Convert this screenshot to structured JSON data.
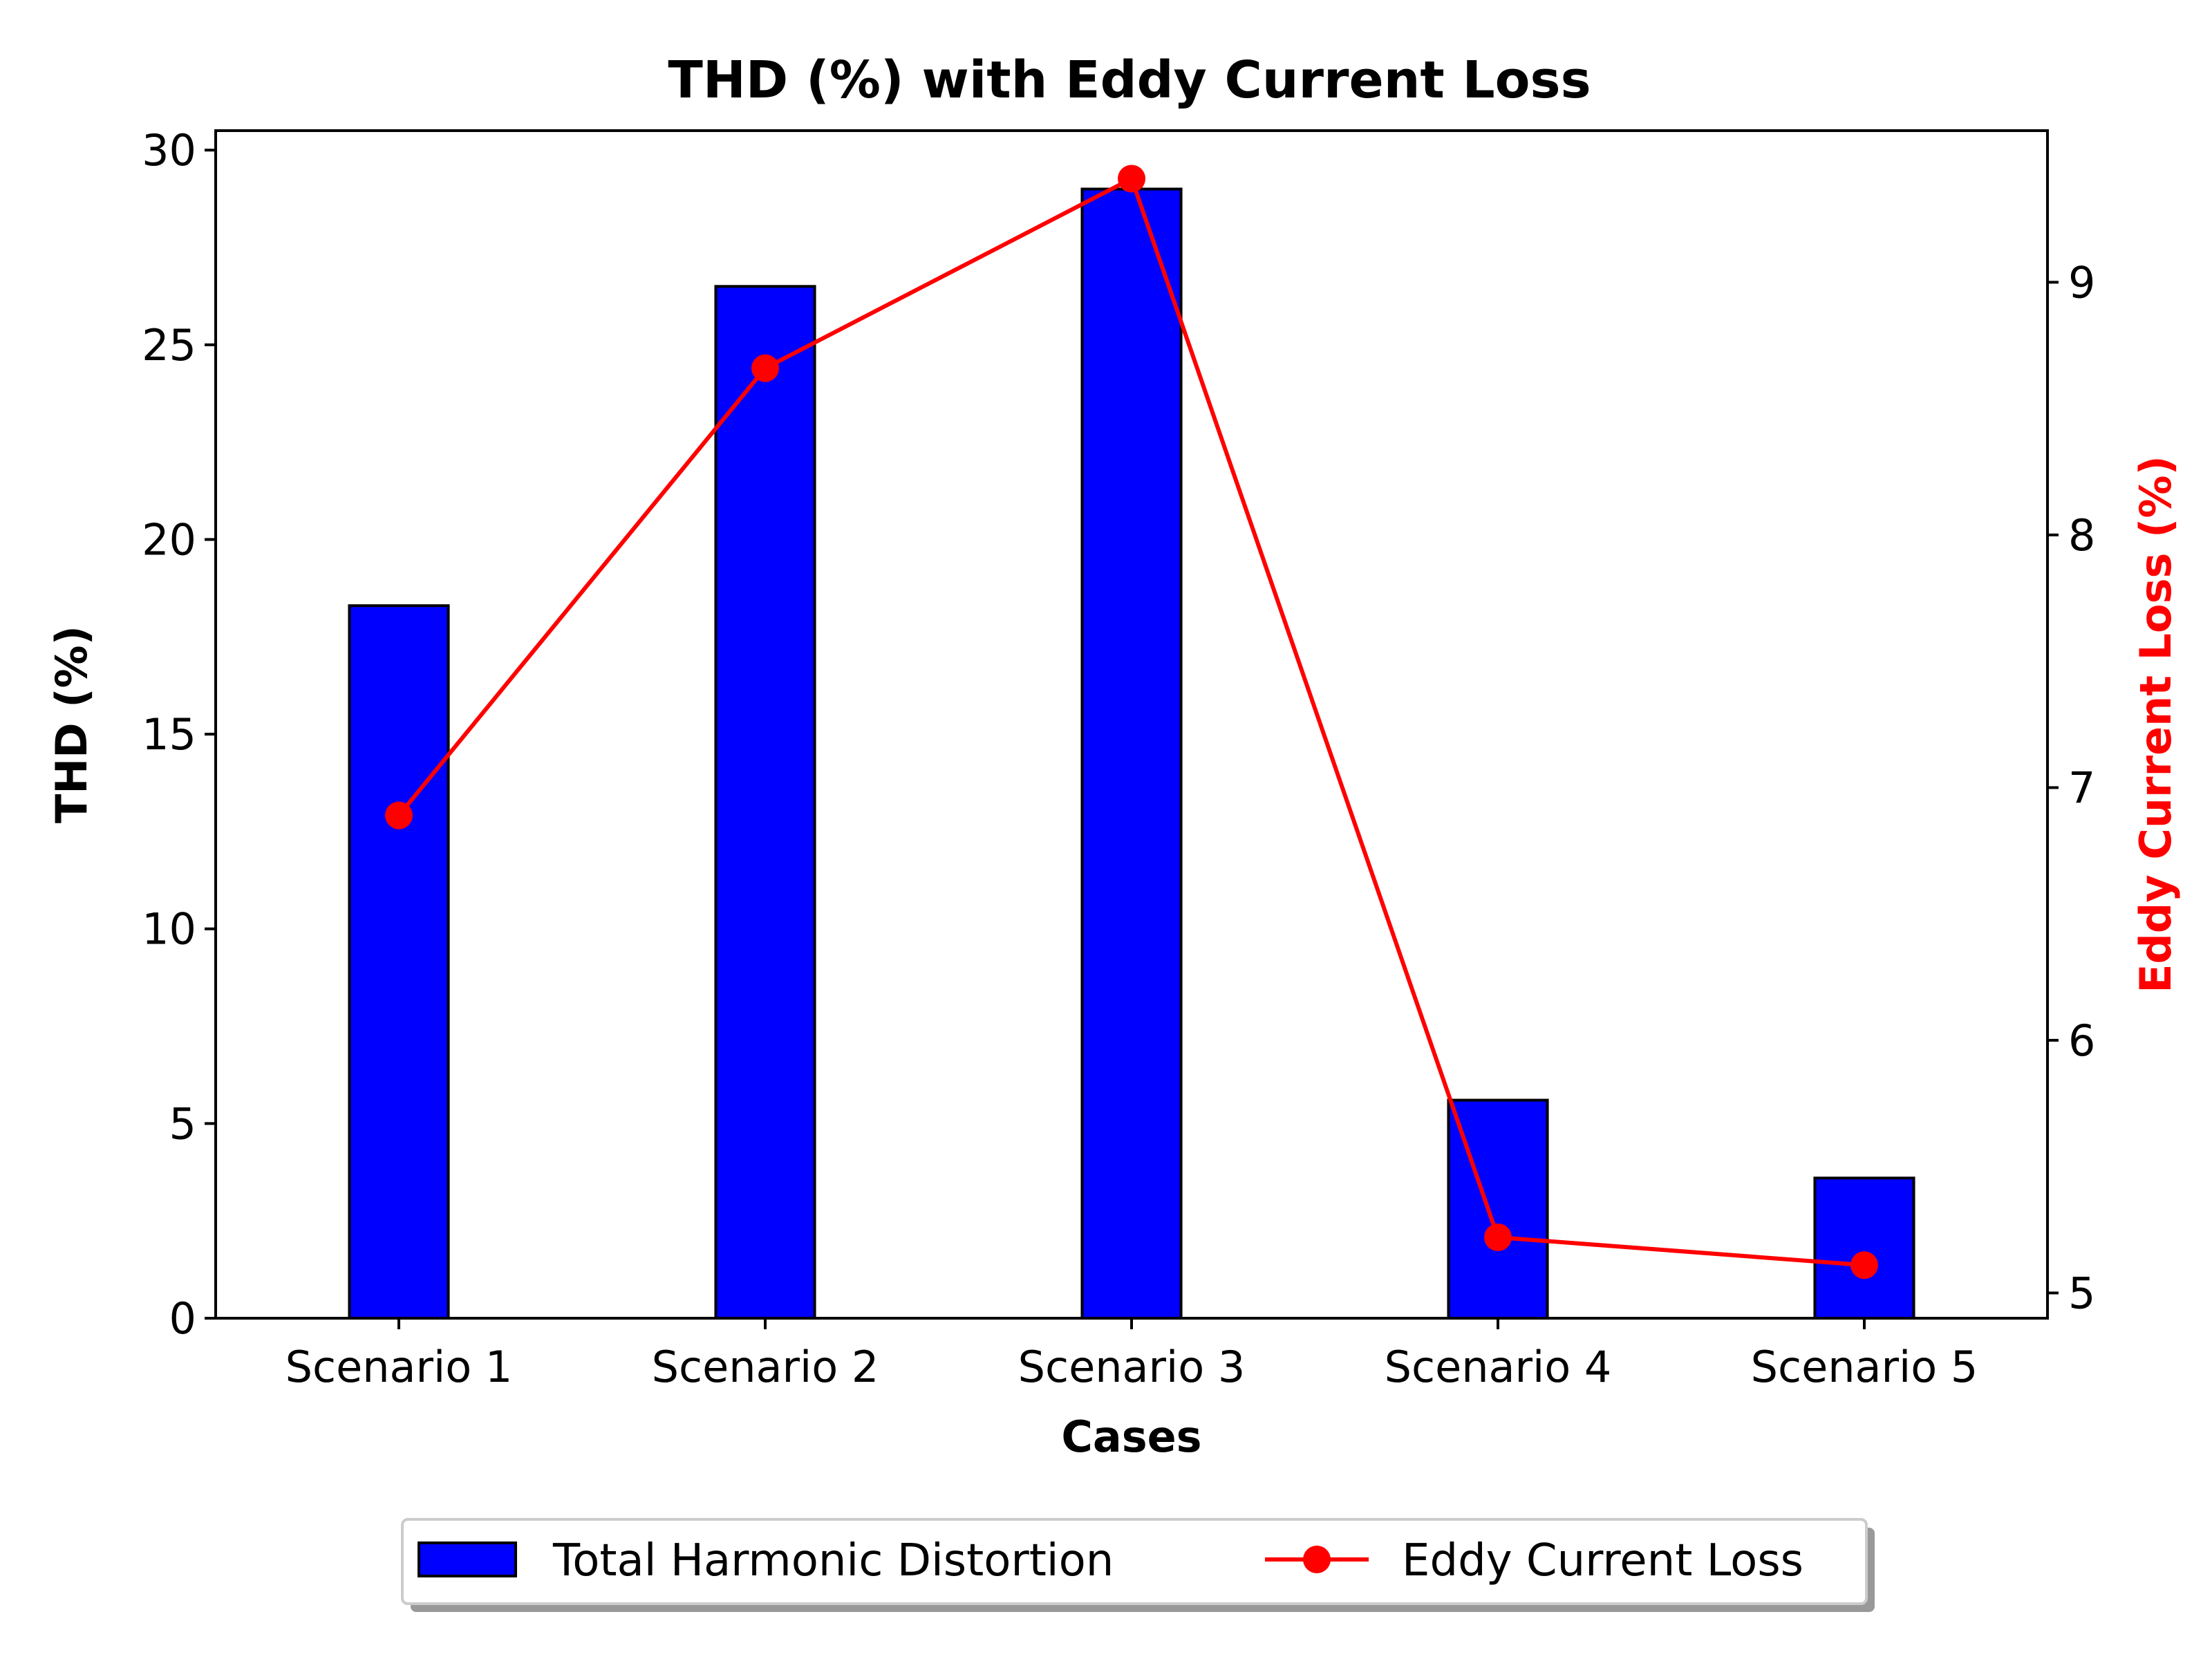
{
  "chart_data": {
    "type": "bar+line",
    "title": "THD (%) with Eddy Current Loss",
    "xlabel": "Cases",
    "categories": [
      "Scenario 1",
      "Scenario 2",
      "Scenario 3",
      "Scenario 4",
      "Scenario 5"
    ],
    "series": [
      {
        "name": "Total Harmonic Distortion",
        "type": "bar",
        "axis": "left",
        "color": "#0000ff",
        "edge_color": "#000000",
        "values": [
          18.3,
          26.5,
          29.0,
          5.6,
          3.6
        ]
      },
      {
        "name": "Eddy Current Loss",
        "type": "line",
        "axis": "right",
        "color": "#ff0000",
        "marker": "circle",
        "values": [
          6.89,
          8.66,
          9.41,
          5.22,
          5.11
        ]
      }
    ],
    "y_left": {
      "label": "THD (%)",
      "range": [
        0,
        30.5
      ],
      "ticks": [
        0,
        5,
        10,
        15,
        20,
        25,
        30
      ],
      "tick_labels": [
        "0",
        "5",
        "10",
        "15",
        "20",
        "25",
        "30"
      ],
      "color": "#000000"
    },
    "y_right": {
      "label": "Eddy Current Loss (%)",
      "range": [
        4.9,
        9.6
      ],
      "ticks": [
        5,
        6,
        7,
        8,
        9
      ],
      "tick_labels": [
        "5",
        "6",
        "7",
        "8",
        "9"
      ],
      "color": "#ff0000"
    },
    "legend": {
      "placement": "bottom-center",
      "entries": [
        "Total Harmonic Distortion",
        "Eddy Current Loss"
      ]
    },
    "grid": false
  }
}
